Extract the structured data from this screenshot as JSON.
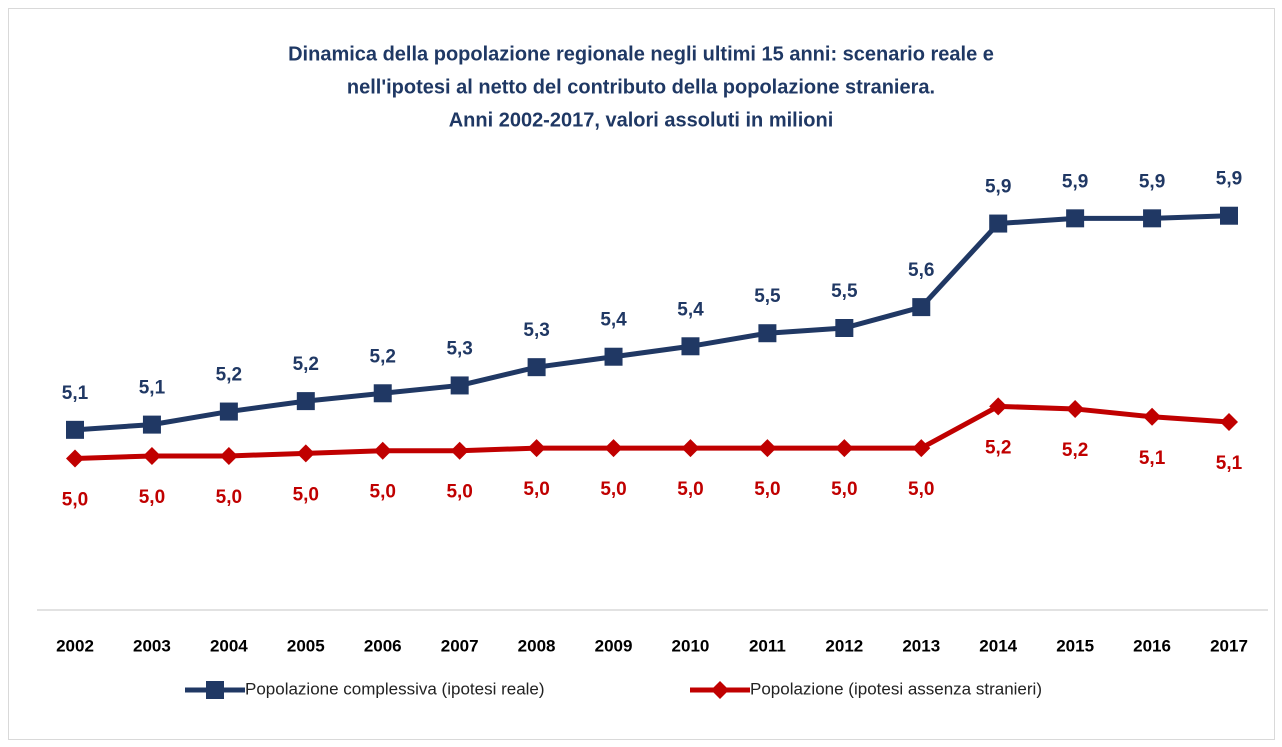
{
  "chart_data": {
    "type": "line",
    "title": [
      "Dinamica della popolazione regionale negli ultimi 15 anni: scenario reale e",
      "nell'ipotesi al netto del contributo della popolazione straniera.",
      "Anni 2002-2017, valori assoluti in milioni"
    ],
    "categories": [
      "2002",
      "2003",
      "2004",
      "2005",
      "2006",
      "2007",
      "2008",
      "2009",
      "2010",
      "2011",
      "2012",
      "2013",
      "2014",
      "2015",
      "2016",
      "2017"
    ],
    "series": [
      {
        "name": "Popolazione complessiva (ipotesi reale)",
        "color": "#203864",
        "marker": "square",
        "label_position": "above",
        "values": [
          5.09,
          5.11,
          5.16,
          5.2,
          5.23,
          5.26,
          5.33,
          5.37,
          5.41,
          5.46,
          5.48,
          5.56,
          5.88,
          5.9,
          5.9,
          5.91
        ],
        "value_labels": [
          "5,1",
          "5,1",
          "5,2",
          "5,2",
          "5,2",
          "5,3",
          "5,3",
          "5,4",
          "5,4",
          "5,5",
          "5,5",
          "5,6",
          "5,9",
          "5,9",
          "5,9",
          "5,9"
        ]
      },
      {
        "name": "Popolazione (ipotesi assenza stranieri)",
        "color": "#c00000",
        "marker": "diamond",
        "label_position": "below",
        "values": [
          4.98,
          4.99,
          4.99,
          5.0,
          5.01,
          5.01,
          5.02,
          5.02,
          5.02,
          5.02,
          5.02,
          5.02,
          5.18,
          5.17,
          5.14,
          5.12
        ],
        "value_labels": [
          "5,0",
          "5,0",
          "5,0",
          "5,0",
          "5,0",
          "5,0",
          "5,0",
          "5,0",
          "5,0",
          "5,0",
          "5,0",
          "5,0",
          "5,2",
          "5,2",
          "5,1",
          "5,1"
        ]
      }
    ],
    "ylim": [
      4.4,
      6.2
    ],
    "legend": "bottom"
  }
}
